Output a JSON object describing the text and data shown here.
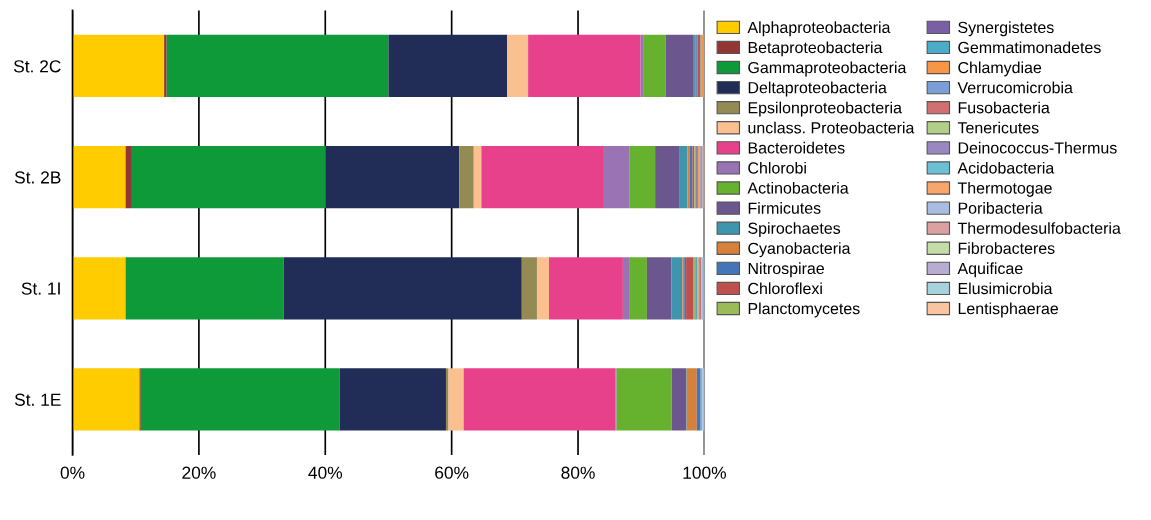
{
  "chart_data": {
    "type": "bar",
    "orientation": "horizontal",
    "stacked": true,
    "categories": [
      "St. 2C",
      "St. 2B",
      "St. 1I",
      "St. 1E"
    ],
    "xlim": [
      0,
      100
    ],
    "xticks": [
      {
        "value": 0,
        "label": "0%"
      },
      {
        "value": 20,
        "label": "20%"
      },
      {
        "value": 40,
        "label": "40%"
      },
      {
        "value": 60,
        "label": "60%"
      },
      {
        "value": 80,
        "label": "80%"
      },
      {
        "value": 100,
        "label": "100%"
      }
    ],
    "grid": "x",
    "legend": "right",
    "series": [
      {
        "name": "Alphaproteobacteria",
        "color": "#ffcc00",
        "values": [
          14.5,
          8.4,
          8.4,
          10.6
        ]
      },
      {
        "name": "Betaproteobacteria",
        "color": "#943634",
        "values": [
          0.4,
          1.0,
          0,
          0.2
        ]
      },
      {
        "name": "Gammaproteobacteria",
        "color": "#0e9a38",
        "values": [
          35.1,
          30.7,
          25.0,
          31.5
        ]
      },
      {
        "name": "Deltaproteobacteria",
        "color": "#212c57",
        "values": [
          18.8,
          21.1,
          37.7,
          16.8
        ]
      },
      {
        "name": "Epsilonproteobacteria",
        "color": "#948a54",
        "values": [
          0,
          2.3,
          2.4,
          0.4
        ]
      },
      {
        "name": "unclass. Proteobacteria",
        "color": "#fac090",
        "values": [
          3.3,
          1.2,
          1.9,
          2.4
        ]
      },
      {
        "name": "Bacteroidetes",
        "color": "#e8418c",
        "values": [
          17.8,
          19.4,
          11.7,
          24.0
        ]
      },
      {
        "name": "Chlorobi",
        "color": "#9a73b5",
        "values": [
          0.4,
          4.0,
          1.1,
          0.2
        ]
      },
      {
        "name": "Actinobacteria",
        "color": "#66b22e",
        "values": [
          3.6,
          4.1,
          2.7,
          8.7
        ]
      },
      {
        "name": "Firmicutes",
        "color": "#6c568e",
        "values": [
          4.3,
          3.9,
          3.9,
          2.3
        ]
      },
      {
        "name": "Spirochaetes",
        "color": "#3f94ae",
        "values": [
          0.3,
          1.2,
          1.7,
          0.1
        ]
      },
      {
        "name": "Cyanobacteria",
        "color": "#d6813a",
        "values": [
          0.2,
          0.4,
          0.3,
          1.6
        ]
      },
      {
        "name": "Nitrospirae",
        "color": "#4475b8",
        "values": [
          0.2,
          0.4,
          0.3,
          0.6
        ]
      },
      {
        "name": "Chloroflexi",
        "color": "#c0504d",
        "values": [
          0.4,
          0.3,
          1.2,
          0
        ]
      },
      {
        "name": "Planctomycetes",
        "color": "#9bbb59",
        "values": [
          0.1,
          0.2,
          0.2,
          0
        ]
      },
      {
        "name": "Synergistetes",
        "color": "#7a5fa6",
        "values": [
          0.1,
          0.2,
          0.1,
          0
        ]
      },
      {
        "name": "Gemmatimonadetes",
        "color": "#4aacc6",
        "values": [
          0.1,
          0.2,
          0.3,
          0
        ]
      },
      {
        "name": "Chlamydiae",
        "color": "#f79646",
        "values": [
          0.3,
          0.2,
          0.2,
          0
        ]
      },
      {
        "name": "Verrucomicrobia",
        "color": "#7a9fd6",
        "values": [
          null,
          0.2,
          0.2,
          0.2
        ]
      },
      {
        "name": "Fusobacteria",
        "color": "#d07070",
        "values": [
          0,
          0.2,
          0.2,
          0
        ]
      },
      {
        "name": "Tenericutes",
        "color": "#b2cf8a",
        "values": [
          0,
          0.1,
          0.1,
          0
        ]
      },
      {
        "name": "Deinococcus-Thermus",
        "color": "#9a86c0",
        "values": [
          0,
          0.1,
          0.1,
          0
        ]
      },
      {
        "name": "Acidobacteria",
        "color": "#6cc0d6",
        "values": [
          0,
          0.1,
          0.3,
          0.1
        ]
      },
      {
        "name": "Thermotogae",
        "color": "#f9a66c",
        "values": [
          0,
          0.1,
          0,
          0
        ]
      },
      {
        "name": "Poribacteria",
        "color": "#a8bde0",
        "values": [
          0,
          0,
          0,
          0.3
        ]
      },
      {
        "name": "Thermodesulfobacteria",
        "color": "#dba0a0",
        "values": [
          0,
          0,
          0,
          0
        ]
      },
      {
        "name": "Fibrobacteres",
        "color": "#c5dca8",
        "values": [
          0,
          0,
          0,
          0
        ]
      },
      {
        "name": "Aquificae",
        "color": "#b8acd0",
        "values": [
          0,
          0,
          0,
          0
        ]
      },
      {
        "name": "Elusimicrobia",
        "color": "#a6d2dc",
        "values": [
          0,
          0,
          0,
          0
        ]
      },
      {
        "name": "Lentisphaerae",
        "color": "#fbc4a0",
        "values": [
          0,
          0,
          0,
          0
        ]
      }
    ]
  }
}
